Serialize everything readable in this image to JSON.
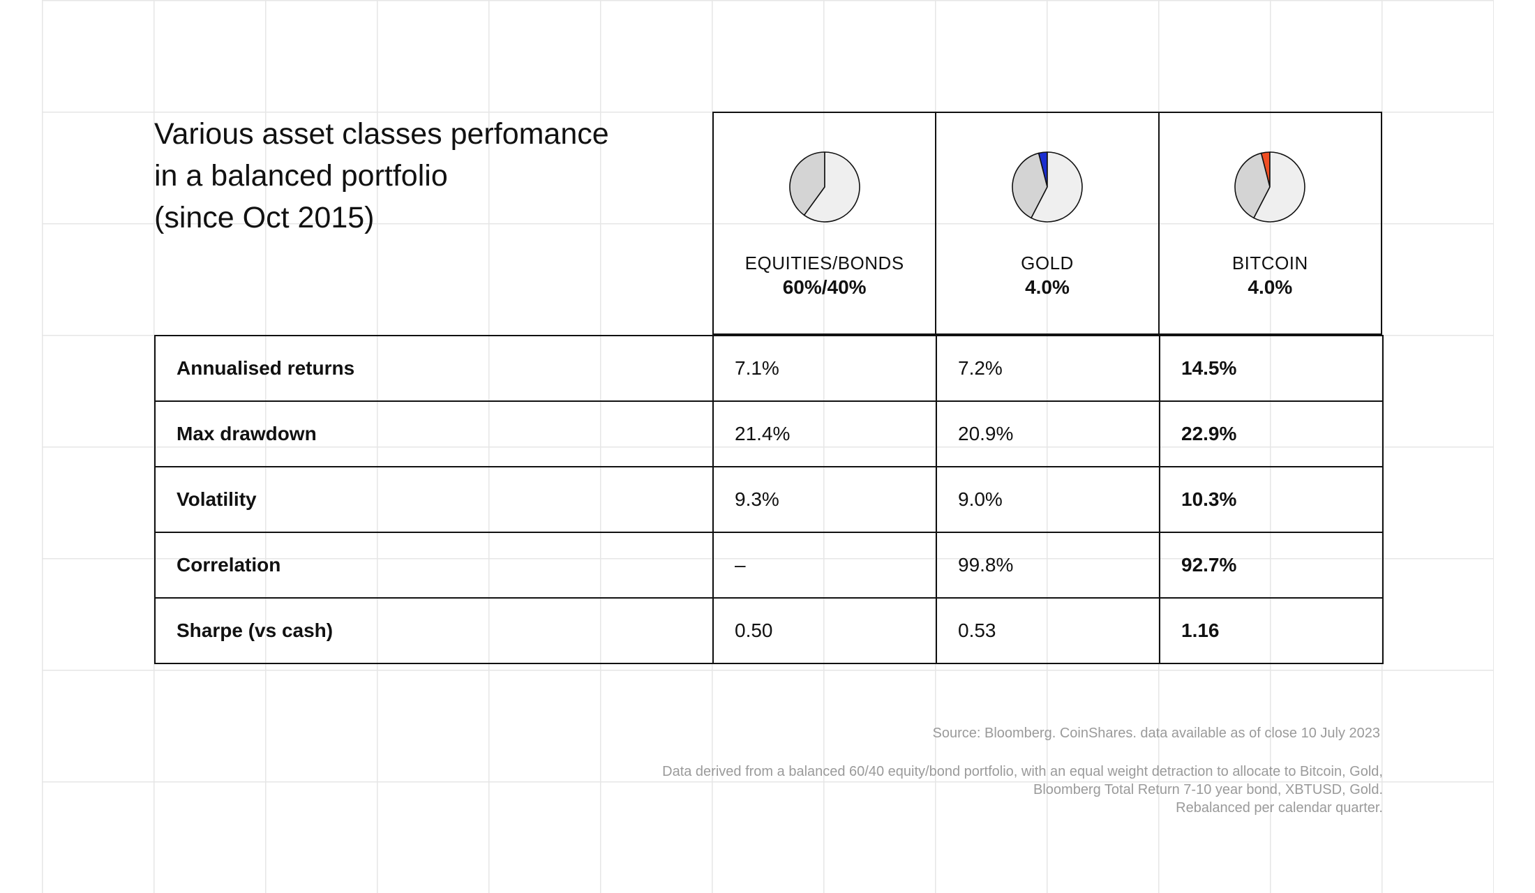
{
  "title": {
    "line1": "Various asset classes perfomance",
    "line2": "in a balanced portfolio",
    "line3": "(since Oct 2015)"
  },
  "colors": {
    "pie_outline": "#111111",
    "pie_equities": "#efefef",
    "pie_bonds": "#d4d4d4",
    "pie_gold": "#1a2ed0",
    "pie_bitcoin": "#f04e23",
    "grid": "#e6e6e6",
    "footnote": "#9a9a9a"
  },
  "columns": [
    {
      "name": "EQUITIES/BONDS",
      "weight": "60%/40%",
      "pie": [
        {
          "label": "Equities",
          "value": 60,
          "color": "#efefef"
        },
        {
          "label": "Bonds",
          "value": 40,
          "color": "#d4d4d4"
        }
      ]
    },
    {
      "name": "GOLD",
      "weight": "4.0%",
      "pie": [
        {
          "label": "Equities",
          "value": 57.6,
          "color": "#efefef"
        },
        {
          "label": "Bonds",
          "value": 38.4,
          "color": "#d4d4d4"
        },
        {
          "label": "Gold",
          "value": 4.0,
          "color": "#1a2ed0"
        }
      ]
    },
    {
      "name": "BITCOIN",
      "weight": "4.0%",
      "pie": [
        {
          "label": "Equities",
          "value": 57.6,
          "color": "#efefef"
        },
        {
          "label": "Bonds",
          "value": 38.4,
          "color": "#d4d4d4"
        },
        {
          "label": "Bitcoin",
          "value": 4.0,
          "color": "#f04e23"
        }
      ]
    }
  ],
  "chart_data": {
    "type": "table",
    "title": "Various asset classes perfomance in a balanced portfolio (since Oct 2015)",
    "columns": [
      "EQUITIES/BONDS 60%/40%",
      "GOLD 4.0%",
      "BITCOIN 4.0%"
    ],
    "rows": [
      {
        "label": "Annualised returns",
        "values": [
          "7.1%",
          "7.2%",
          "14.5%"
        ]
      },
      {
        "label": "Max drawdown",
        "values": [
          "21.4%",
          "20.9%",
          "22.9%"
        ]
      },
      {
        "label": "Volatility",
        "values": [
          "9.3%",
          "9.0%",
          "10.3%"
        ]
      },
      {
        "label": "Correlation",
        "values": [
          "–",
          "99.8%",
          "92.7%"
        ]
      },
      {
        "label": "Sharpe (vs cash)",
        "values": [
          "0.50",
          "0.53",
          "1.16"
        ]
      }
    ]
  },
  "footer": {
    "source": "Source: Bloomberg. CoinShares. data available as of close 10 July 2023",
    "note_line1": "Data derived from a balanced 60/40 equity/bond portfolio, with an equal weight detraction to allocate to Bitcoin, Gold,",
    "note_line2": "Bloomberg Total Return 7-10 year bond, XBTUSD, Gold.",
    "note_line3": "Rebalanced per calendar quarter."
  }
}
